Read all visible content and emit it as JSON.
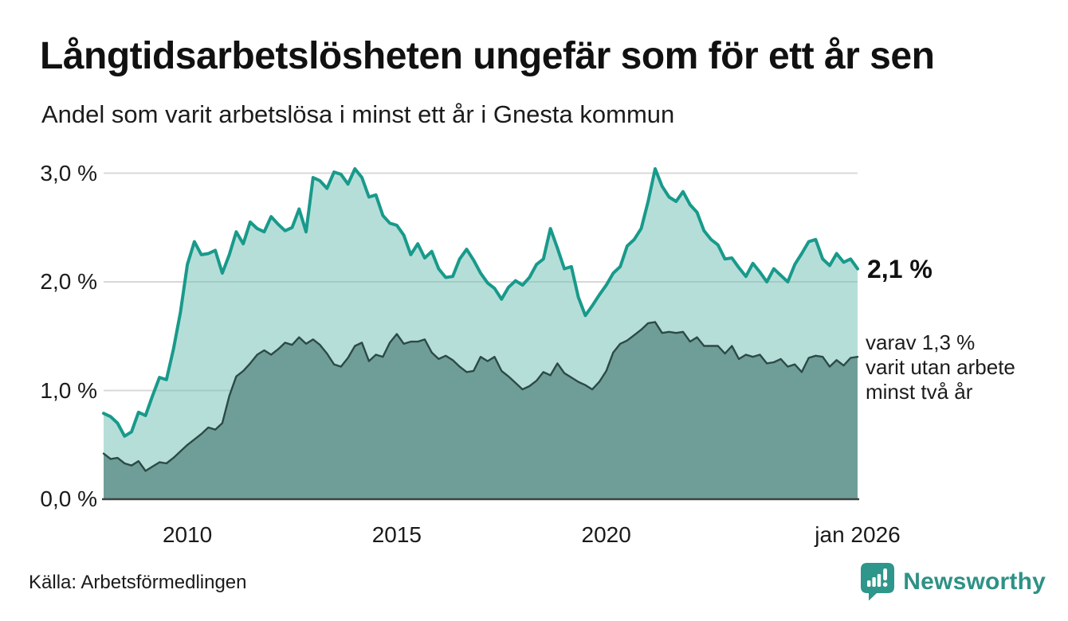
{
  "header": {
    "title": "Långtidsarbetslösheten ungefär som för ett år sen",
    "subtitle": "Andel som varit arbetslösa i minst ett år i Gnesta kommun"
  },
  "chart_data": {
    "type": "area",
    "title": "Långtidsarbetslösheten ungefär som för ett år sen",
    "subtitle": "Andel som varit arbetslösa i minst ett år i Gnesta kommun",
    "xlabel": "",
    "ylabel": "",
    "xlim": [
      2008,
      2026
    ],
    "ylim": [
      0,
      3.2
    ],
    "grid": "horizontal",
    "legend_position": "none",
    "x_start_year": 2008.0,
    "x_step_years": 0.166667,
    "x_ticks": [
      {
        "label": "2010",
        "year": 2010
      },
      {
        "label": "2015",
        "year": 2015
      },
      {
        "label": "2020",
        "year": 2020
      },
      {
        "label": "jan 2026",
        "year": 2026
      }
    ],
    "y_ticks": [
      {
        "label": "0,0 %",
        "value": 0
      },
      {
        "label": "1,0 %",
        "value": 1
      },
      {
        "label": "2,0 %",
        "value": 2
      },
      {
        "label": "3,0 %",
        "value": 3
      }
    ],
    "series": [
      {
        "name": "Andel som varit arbetslösa i minst ett år",
        "line_color": "#189A8B",
        "line_width": 4,
        "fill_color": "rgba(109,189,177,0.5)",
        "end_value_label": "2,1 %",
        "end_value": 2.1,
        "values": [
          0.79,
          0.76,
          0.7,
          0.58,
          0.62,
          0.8,
          0.77,
          0.95,
          1.12,
          1.1,
          1.38,
          1.72,
          2.16,
          2.37,
          2.25,
          2.26,
          2.29,
          2.08,
          2.25,
          2.46,
          2.35,
          2.55,
          2.49,
          2.46,
          2.6,
          2.53,
          2.47,
          2.5,
          2.67,
          2.46,
          2.96,
          2.93,
          2.86,
          3.01,
          2.99,
          2.9,
          3.04,
          2.96,
          2.78,
          2.8,
          2.61,
          2.54,
          2.52,
          2.43,
          2.25,
          2.35,
          2.22,
          2.28,
          2.12,
          2.04,
          2.05,
          2.21,
          2.3,
          2.2,
          2.08,
          1.99,
          1.94,
          1.84,
          1.95,
          2.01,
          1.97,
          2.04,
          2.16,
          2.21,
          2.49,
          2.31,
          2.12,
          2.14,
          1.86,
          1.69,
          1.78,
          1.88,
          1.97,
          2.08,
          2.14,
          2.33,
          2.39,
          2.49,
          2.74,
          3.04,
          2.88,
          2.78,
          2.74,
          2.83,
          2.71,
          2.64,
          2.47,
          2.39,
          2.34,
          2.21,
          2.22,
          2.13,
          2.05,
          2.17,
          2.09,
          2.0,
          2.12,
          2.06,
          2.0,
          2.16,
          2.26,
          2.37,
          2.39,
          2.21,
          2.15,
          2.26,
          2.18,
          2.21,
          2.12
        ]
      },
      {
        "name": "varav utan arbete minst två år",
        "line_color": "#2C4A46",
        "line_width": 2.4,
        "fill_color": "#6F9E99",
        "end_value_label": "varav 1,3 %",
        "end_value": 1.3,
        "values": [
          0.42,
          0.37,
          0.38,
          0.33,
          0.31,
          0.35,
          0.26,
          0.3,
          0.34,
          0.33,
          0.38,
          0.44,
          0.5,
          0.55,
          0.6,
          0.66,
          0.64,
          0.7,
          0.95,
          1.13,
          1.18,
          1.25,
          1.33,
          1.37,
          1.33,
          1.38,
          1.44,
          1.42,
          1.49,
          1.43,
          1.47,
          1.42,
          1.34,
          1.24,
          1.22,
          1.3,
          1.41,
          1.44,
          1.27,
          1.33,
          1.31,
          1.44,
          1.52,
          1.43,
          1.45,
          1.45,
          1.47,
          1.35,
          1.29,
          1.32,
          1.28,
          1.22,
          1.17,
          1.18,
          1.31,
          1.27,
          1.31,
          1.18,
          1.13,
          1.07,
          1.01,
          1.04,
          1.09,
          1.17,
          1.14,
          1.25,
          1.16,
          1.12,
          1.08,
          1.05,
          1.01,
          1.08,
          1.18,
          1.35,
          1.43,
          1.46,
          1.51,
          1.56,
          1.62,
          1.63,
          1.53,
          1.54,
          1.53,
          1.54,
          1.45,
          1.49,
          1.41,
          1.41,
          1.41,
          1.34,
          1.41,
          1.29,
          1.33,
          1.31,
          1.33,
          1.25,
          1.26,
          1.29,
          1.22,
          1.24,
          1.17,
          1.3,
          1.32,
          1.31,
          1.22,
          1.28,
          1.23,
          1.3,
          1.31
        ]
      }
    ]
  },
  "annotations": {
    "end_value_main": "2,1 %",
    "end_note_lines": [
      "varav 1,3 %",
      "varit utan arbete",
      "minst två år"
    ]
  },
  "footer": {
    "source": "Källa: Arbetsförmedlingen",
    "brand": "Newsworthy",
    "brand_icon": "bar-chart-speech-bubble-icon"
  },
  "colors": {
    "accent_teal": "#189A8B",
    "fill_light": "#B6DED8",
    "fill_dark": "#6F9E99",
    "line_dark": "#2C4A46",
    "gridline": "#D8D8D8",
    "baseline": "#404040",
    "brand_teal": "#2E968B",
    "text": "#161616"
  }
}
